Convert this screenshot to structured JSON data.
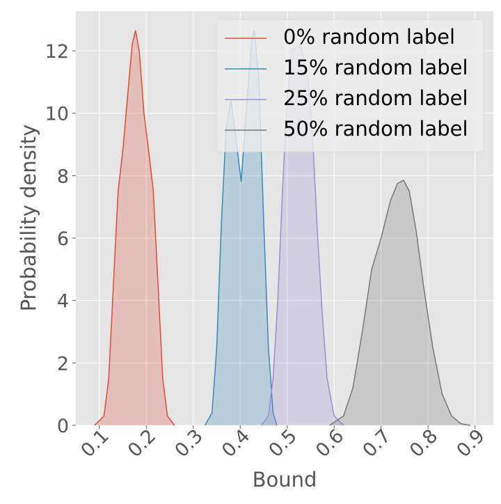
{
  "chart_data": {
    "type": "density",
    "x_label": "Bound",
    "y_label": "Probability density",
    "xlim": [
      0.05,
      0.939
    ],
    "ylim": [
      0,
      13.27
    ],
    "xticks": [
      0.1,
      0.2,
      0.3,
      0.4,
      0.5,
      0.6,
      0.7,
      0.8,
      0.9
    ],
    "yticks": [
      0,
      2,
      4,
      6,
      8,
      10,
      12
    ],
    "grid": true,
    "legend": "upper right",
    "series": [
      {
        "name": "0% random label",
        "color": "#E24A33",
        "x": [
          0.09,
          0.11,
          0.12,
          0.13,
          0.14,
          0.15,
          0.16,
          0.17,
          0.177,
          0.185,
          0.195,
          0.205,
          0.215,
          0.225,
          0.235,
          0.245,
          0.26
        ],
        "values": [
          0,
          0.3,
          1.5,
          4.5,
          7.5,
          8.8,
          10.5,
          12.2,
          12.65,
          12,
          10,
          8.8,
          7.5,
          4.5,
          1.5,
          0.3,
          0
        ]
      },
      {
        "name": "15% random label",
        "color": "#348ABD",
        "x": [
          0.325,
          0.34,
          0.35,
          0.36,
          0.37,
          0.38,
          0.39,
          0.402,
          0.415,
          0.425,
          0.43,
          0.44,
          0.45,
          0.46,
          0.47,
          0.478
        ],
        "values": [
          0,
          0.4,
          2.5,
          6.5,
          9.5,
          10.4,
          9.3,
          7.8,
          10.5,
          12.4,
          12.65,
          11,
          6.5,
          2.5,
          0.4,
          0
        ]
      },
      {
        "name": "25% random label",
        "color": "#988ED5",
        "x": [
          0.445,
          0.46,
          0.47,
          0.48,
          0.49,
          0.5,
          0.51,
          0.528,
          0.545,
          0.555,
          0.565,
          0.575,
          0.585,
          0.6,
          0.62
        ],
        "values": [
          0,
          0.3,
          1.5,
          4,
          7.5,
          10.5,
          12,
          12.2,
          11,
          9,
          6,
          3.5,
          1.5,
          0.3,
          0
        ]
      },
      {
        "name": "50% random label",
        "color": "#777777",
        "x": [
          0.59,
          0.62,
          0.64,
          0.66,
          0.68,
          0.7,
          0.72,
          0.735,
          0.748,
          0.76,
          0.775,
          0.79,
          0.81,
          0.83,
          0.85,
          0.87,
          0.89
        ],
        "values": [
          0,
          0.3,
          1.2,
          3,
          5,
          6,
          7.2,
          7.75,
          7.85,
          7.5,
          6.2,
          4.5,
          2.5,
          1,
          0.3,
          0.05,
          0
        ]
      }
    ]
  }
}
